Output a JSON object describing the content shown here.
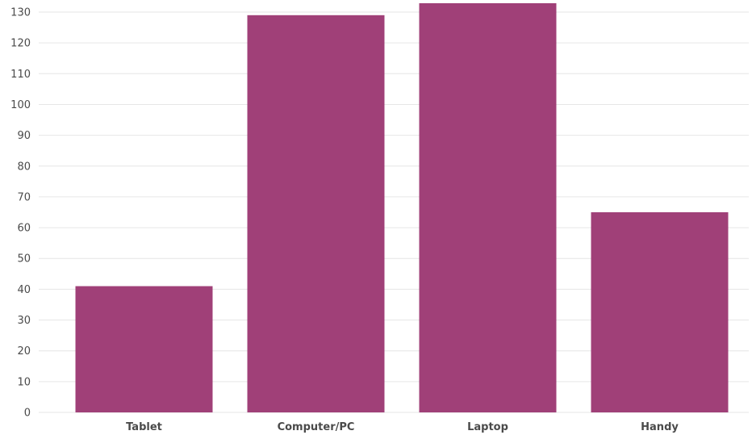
{
  "chart_data": {
    "type": "bar",
    "title": "",
    "xlabel": "",
    "ylabel": "",
    "categories": [
      "Tablet",
      "Computer/PC",
      "Laptop",
      "Handy"
    ],
    "values": [
      41,
      129,
      133,
      65
    ],
    "ylim": [
      0,
      130
    ],
    "yticks": [
      0,
      10,
      20,
      30,
      40,
      50,
      60,
      70,
      80,
      90,
      100,
      110,
      120,
      130
    ],
    "grid": true,
    "legend": "none",
    "colors": {
      "bar": "#a04078",
      "grid": "#e6e6e6",
      "text": "#4a4a4a"
    }
  }
}
